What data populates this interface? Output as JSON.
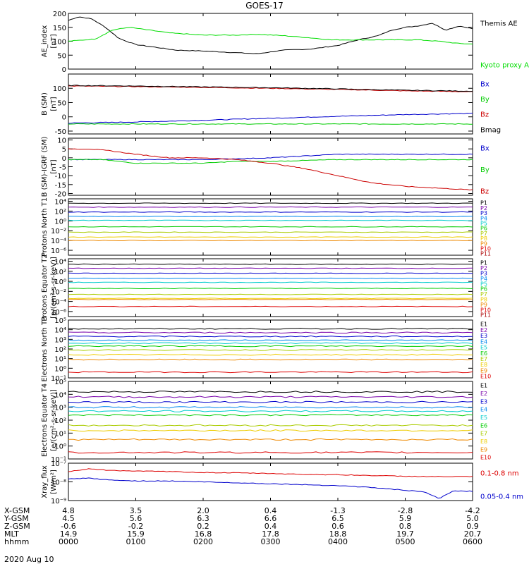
{
  "title": "GOES-17",
  "date_label": "2020 Aug 10",
  "orbit_table": {
    "rows": [
      {
        "label": "X-GSM",
        "values": [
          "4.8",
          "3.5",
          "2.0",
          "0.4",
          "-1.3",
          "-2.8",
          "-4.2"
        ]
      },
      {
        "label": "Y-GSM",
        "values": [
          "4.5",
          "5.6",
          "6.3",
          "6.6",
          "6.5",
          "5.9",
          "5.0"
        ]
      },
      {
        "label": "Z-GSM",
        "values": [
          "-0.6",
          "-0.2",
          "0.2",
          "0.4",
          "0.6",
          "0.8",
          "0.9"
        ]
      },
      {
        "label": "MLT",
        "values": [
          "14.9",
          "15.9",
          "16.8",
          "17.8",
          "18.8",
          "19.7",
          "20.7"
        ]
      },
      {
        "label": "hhmm",
        "values": [
          "0000",
          "0100",
          "0200",
          "0300",
          "0400",
          "0500",
          "0600"
        ]
      }
    ]
  },
  "chart_data": [
    {
      "type": "line",
      "ylabel": "AE_index [nT]",
      "ylim": [
        0,
        200
      ],
      "yscale": "linear",
      "yticks": [
        0,
        50,
        100,
        150,
        200
      ],
      "yticklabels": [
        "0",
        "50",
        "100",
        "150",
        "200"
      ],
      "x_hours": [
        0,
        6
      ],
      "series": [
        {
          "name": "Themis AE",
          "color": "#000000",
          "x": [
            0,
            0.15,
            0.35,
            0.55,
            0.75,
            1.0,
            1.3,
            1.6,
            2.0,
            2.4,
            2.8,
            3.2,
            3.6,
            4.0,
            4.3,
            4.6,
            4.8,
            5.0,
            5.2,
            5.4,
            5.6,
            5.8,
            6.0
          ],
          "values": [
            175,
            188,
            180,
            150,
            110,
            88,
            78,
            68,
            65,
            60,
            55,
            68,
            72,
            85,
            105,
            120,
            140,
            150,
            155,
            165,
            140,
            155,
            145
          ]
        },
        {
          "name": "Kyoto proxy AE",
          "color": "#00dd00",
          "x": [
            0,
            0.4,
            0.65,
            0.9,
            1.2,
            1.5,
            2.0,
            2.5,
            2.8,
            3.2,
            3.6,
            3.9,
            4.3,
            4.8,
            5.2,
            5.5,
            5.8,
            6.0
          ],
          "values": [
            100,
            108,
            140,
            150,
            140,
            130,
            122,
            122,
            125,
            120,
            112,
            105,
            105,
            105,
            105,
            100,
            92,
            90
          ]
        }
      ]
    },
    {
      "type": "line",
      "ylabel": "B (SM) [nT]",
      "ylim": [
        -60,
        150
      ],
      "yscale": "linear",
      "yticks": [
        -50,
        0,
        50,
        100
      ],
      "yticklabels": [
        "-50",
        "0",
        "50",
        "100"
      ],
      "x_hours": [
        0,
        6
      ],
      "series": [
        {
          "name": "Bx",
          "color": "#0000cc",
          "x": [
            0,
            1,
            2,
            3,
            4,
            5,
            6
          ],
          "values": [
            -22,
            -18,
            -12,
            -5,
            2,
            8,
            12
          ]
        },
        {
          "name": "By",
          "color": "#00cc00",
          "x": [
            0,
            1,
            2,
            3,
            4,
            5,
            6
          ],
          "values": [
            -25,
            -25,
            -25,
            -25,
            -25,
            -25,
            -25
          ]
        },
        {
          "name": "Bz",
          "color": "#cc0000",
          "x": [
            0,
            1,
            2,
            3,
            4,
            5,
            6
          ],
          "values": [
            108,
            106,
            103,
            100,
            96,
            91,
            88
          ]
        },
        {
          "name": "Bmag",
          "color": "#000000",
          "x": [
            0,
            1,
            2,
            3,
            4,
            5,
            6
          ],
          "values": [
            110,
            108,
            105,
            102,
            98,
            93,
            90
          ]
        }
      ]
    },
    {
      "type": "line",
      "ylabel": "B (SM)-IGRF (SM) [nT]",
      "ylim": [
        -21,
        11
      ],
      "yscale": "linear",
      "yticks": [
        -20,
        -15,
        -10,
        -5,
        0,
        5,
        10
      ],
      "yticklabels": [
        "-20",
        "-15",
        "-10",
        "-5",
        "0",
        "5",
        "10"
      ],
      "x_hours": [
        0,
        6
      ],
      "series": [
        {
          "name": "Bx",
          "color": "#0000cc",
          "x": [
            0,
            1,
            2,
            3,
            3.5,
            4,
            5,
            6
          ],
          "values": [
            -1,
            -1,
            -1,
            0,
            1,
            2,
            2,
            2
          ]
        },
        {
          "name": "By",
          "color": "#00cc00",
          "x": [
            0,
            0.5,
            1,
            1.5,
            2,
            2.5,
            3,
            4,
            5,
            6
          ],
          "values": [
            -1,
            -1,
            -3,
            -3,
            -3,
            -2,
            -2,
            -1,
            -1,
            -1
          ]
        },
        {
          "name": "Bz",
          "color": "#cc0000",
          "x": [
            0,
            0.3,
            0.6,
            1.0,
            1.5,
            2.0,
            2.5,
            3.0,
            3.5,
            4.0,
            4.5,
            5.0,
            5.5,
            6.0
          ],
          "values": [
            5,
            5,
            4,
            2,
            0,
            0,
            -1,
            -3,
            -6,
            -10,
            -14,
            -16,
            -17,
            -18
          ]
        }
      ]
    },
    {
      "type": "line",
      "ylabel": "Protons North T1",
      "ylim": [
        -7,
        4.5
      ],
      "yscale": "log10_exponent",
      "yticks": [
        -6,
        -4,
        -2,
        0,
        2,
        4
      ],
      "yticklabels": [
        "10⁻⁶",
        "10⁻⁴",
        "10⁻²",
        "10⁰",
        "10²",
        "10⁴"
      ],
      "x_hours": [
        0,
        6
      ],
      "series": [
        {
          "name": "P1",
          "color": "#000000",
          "level": 3.6
        },
        {
          "name": "P2",
          "color": "#7700aa",
          "level": 2.8
        },
        {
          "name": "P3",
          "color": "#0000cc",
          "level": 1.8
        },
        {
          "name": "P4",
          "color": "#0088ee",
          "level": 0.9
        },
        {
          "name": "P5",
          "color": "#00cccc",
          "level": 0.1
        },
        {
          "name": "P6",
          "color": "#00cc00",
          "level": -1.2
        },
        {
          "name": "P7",
          "color": "#aacc00",
          "level": -2.3
        },
        {
          "name": "P8",
          "color": "#eecc00",
          "level": -3.3
        },
        {
          "name": "P9",
          "color": "#ee8800",
          "level": -4.0
        },
        {
          "name": "P10",
          "color": "#dd0000",
          "level": null
        },
        {
          "name": "P11",
          "color": "#aa0000",
          "level": null
        }
      ]
    },
    {
      "type": "line",
      "ylabel": "Protons Equator T2 [p/(cm²-s-sr-keV)]",
      "ylim": [
        -7,
        4.5
      ],
      "yscale": "log10_exponent",
      "yticks": [
        -6,
        -4,
        -2,
        0,
        2,
        4
      ],
      "yticklabels": [
        "10⁻⁶",
        "10⁻⁴",
        "10⁻²",
        "10⁰",
        "10²",
        "10⁴"
      ],
      "x_hours": [
        0,
        6
      ],
      "series": [
        {
          "name": "P1",
          "color": "#000000",
          "level": 3.4
        },
        {
          "name": "P2",
          "color": "#7700aa",
          "level": 2.6
        },
        {
          "name": "P3",
          "color": "#0000cc",
          "level": 1.6
        },
        {
          "name": "P4",
          "color": "#0088ee",
          "level": 0.6
        },
        {
          "name": "P5",
          "color": "#00cccc",
          "level": -0.2
        },
        {
          "name": "P6",
          "color": "#00cc00",
          "level": -1.4
        },
        {
          "name": "P7",
          "color": "#aacc00",
          "level": -2.6
        },
        {
          "name": "P8",
          "color": "#eecc00",
          "level": -3.4
        },
        {
          "name": "P9",
          "color": "#ee8800",
          "level": -3.6
        },
        {
          "name": "P10",
          "color": "#dd0000",
          "level": -5.0
        },
        {
          "name": "P11",
          "color": "#aa0000",
          "level": null
        }
      ]
    },
    {
      "type": "line",
      "ylabel": "Electrons North T3",
      "ylim": [
        -1,
        5
      ],
      "yscale": "log10_exponent",
      "yticks": [
        -1,
        0,
        1,
        2,
        3,
        4,
        5
      ],
      "yticklabels": [
        "10⁻¹",
        "10⁰",
        "10¹",
        "10²",
        "10³",
        "10⁴",
        "10⁵"
      ],
      "x_hours": [
        0,
        6
      ],
      "series": [
        {
          "name": "E1",
          "color": "#000000",
          "level": 4.1
        },
        {
          "name": "E2",
          "color": "#7700aa",
          "level": 3.7
        },
        {
          "name": "E3",
          "color": "#0000cc",
          "level": 3.3
        },
        {
          "name": "E4",
          "color": "#0088ee",
          "level": 2.9
        },
        {
          "name": "E5",
          "color": "#00cccc",
          "level": 2.6
        },
        {
          "name": "E6",
          "color": "#00cc00",
          "level": 2.3
        },
        {
          "name": "E7",
          "color": "#aacc00",
          "level": 1.9
        },
        {
          "name": "E8",
          "color": "#eecc00",
          "level": 1.4
        },
        {
          "name": "E9",
          "color": "#ee8800",
          "level": 0.9
        },
        {
          "name": "E10",
          "color": "#dd0000",
          "level": -0.4
        }
      ]
    },
    {
      "type": "line",
      "ylabel": "Electrons Equator T4 [e/(cm²-s-sr-keV)]",
      "ylim": [
        -1,
        5
      ],
      "yscale": "log10_exponent",
      "yticks": [
        -1,
        0,
        1,
        2,
        3,
        4,
        5
      ],
      "yticklabels": [
        "10⁻¹",
        "10⁰",
        "10¹",
        "10²",
        "10³",
        "10⁴",
        "10⁵"
      ],
      "x_hours": [
        0,
        6
      ],
      "series": [
        {
          "name": "E1",
          "color": "#000000",
          "level": 4.2
        },
        {
          "name": "E2",
          "color": "#7700aa",
          "level": 3.8
        },
        {
          "name": "E3",
          "color": "#0000cc",
          "level": 3.4
        },
        {
          "name": "E4",
          "color": "#0088ee",
          "level": 3.0
        },
        {
          "name": "E5",
          "color": "#00cccc",
          "level": 2.7
        },
        {
          "name": "E6",
          "color": "#00cc00",
          "level": 2.4
        },
        {
          "name": "E7",
          "color": "#aacc00",
          "level": 1.6
        },
        {
          "name": "E8",
          "color": "#eecc00",
          "level": 1.2
        },
        {
          "name": "E9",
          "color": "#ee8800",
          "level": 0.5
        },
        {
          "name": "E10",
          "color": "#dd0000",
          "level": -0.5
        }
      ]
    },
    {
      "type": "line",
      "ylabel": "Xray_flux [W/m²]",
      "ylim": [
        -9,
        -7
      ],
      "yscale": "log10_exponent",
      "yticks": [
        -9,
        -8,
        -7
      ],
      "yticklabels": [
        "10⁻⁹",
        "10⁻⁸",
        "10⁻⁷"
      ],
      "x_hours": [
        0,
        6
      ],
      "series": [
        {
          "name": "0.1-0.8 nm",
          "color": "#dd0000",
          "x": [
            0,
            0.3,
            0.6,
            1.0,
            1.5,
            2.0,
            2.5,
            3.0,
            3.5,
            4.0,
            4.5,
            5.0,
            5.5,
            6.0
          ],
          "values": [
            -7.45,
            -7.3,
            -7.38,
            -7.42,
            -7.45,
            -7.5,
            -7.52,
            -7.55,
            -7.6,
            -7.62,
            -7.66,
            -7.7,
            -7.72,
            -7.72
          ]
        },
        {
          "name": "0.05-0.4 nm",
          "color": "#0000cc",
          "x": [
            0,
            0.3,
            0.6,
            1.0,
            1.5,
            2.0,
            2.5,
            3.0,
            3.5,
            4.0,
            4.5,
            5.0,
            5.3,
            5.5,
            5.7,
            6.0
          ],
          "values": [
            -7.85,
            -7.8,
            -7.9,
            -7.95,
            -7.95,
            -8.0,
            -8.05,
            -8.1,
            -8.15,
            -8.2,
            -8.3,
            -8.45,
            -8.55,
            -8.9,
            -8.5,
            -8.5
          ]
        }
      ]
    }
  ]
}
